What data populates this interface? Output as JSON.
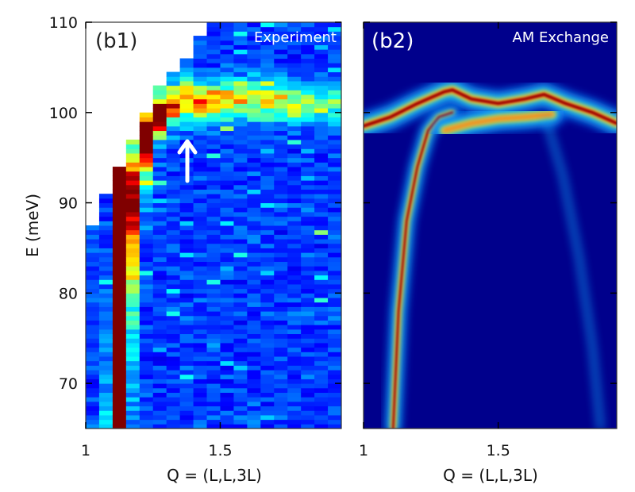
{
  "chart_data": [
    {
      "type": "heatmap",
      "panel_label": "(b1)",
      "title": "Experiment",
      "xlabel": "Q = (L,L,3L)",
      "ylabel": "E (meV)",
      "xlim": [
        1.0,
        1.95
      ],
      "ylim": [
        65,
        110
      ],
      "xticks": [
        "1",
        "1.5"
      ],
      "xtick_values": [
        1.0,
        1.5
      ],
      "yticks": [
        "70",
        "80",
        "90",
        "100",
        "110"
      ],
      "ytick_values": [
        70,
        80,
        90,
        100,
        110
      ],
      "colormap": "jet",
      "q_bin_width": 0.05,
      "data_coverage_top_energy": {
        "Q": [
          1.0,
          1.05,
          1.1,
          1.15,
          1.2,
          1.25,
          1.3,
          1.35,
          1.4
        ],
        "E": [
          87.5,
          90.7,
          93.8,
          97.0,
          100.0,
          102.7,
          104.3,
          105.8,
          108.2
        ]
      },
      "dispersion": {
        "Q": [
          1.12,
          1.13,
          1.15,
          1.18,
          1.22,
          1.27,
          1.35,
          1.45,
          1.55,
          1.65,
          1.75
        ],
        "E": [
          65,
          75,
          85,
          92,
          97,
          100,
          101.5,
          101,
          101.5,
          101.5,
          101
        ]
      },
      "annotation": "arrow pointing up at Q≈1.38, E≈98"
    },
    {
      "type": "heatmap",
      "panel_label": "(b2)",
      "title": "AM Exchange",
      "xlabel": "Q = (L,L,3L)",
      "xlim": [
        1.0,
        1.94
      ],
      "ylim": [
        65,
        110
      ],
      "xticks": [
        "1",
        "1.5"
      ],
      "xtick_values": [
        1.0,
        1.5
      ],
      "colormap": "jet",
      "branches": [
        {
          "Q": [
            1.11,
            1.13,
            1.16,
            1.2,
            1.24,
            1.28,
            1.33
          ],
          "E": [
            65,
            78,
            88,
            94,
            98,
            99.5,
            100
          ]
        },
        {
          "Q": [
            1.0,
            1.1,
            1.2,
            1.3,
            1.33,
            1.4,
            1.5,
            1.6,
            1.67,
            1.75,
            1.85,
            1.94
          ],
          "E": [
            98.5,
            99.5,
            101,
            102.3,
            102.5,
            101.5,
            101,
            101.5,
            102,
            101,
            100,
            98.8
          ]
        },
        {
          "Q": [
            1.3,
            1.4,
            1.5,
            1.6,
            1.7
          ],
          "E": [
            98,
            98.8,
            99.3,
            99.5,
            99.8
          ]
        },
        {
          "Q": [
            1.68,
            1.74,
            1.8,
            1.85,
            1.88
          ],
          "E": [
            99,
            93,
            84,
            74,
            65
          ]
        }
      ]
    }
  ]
}
